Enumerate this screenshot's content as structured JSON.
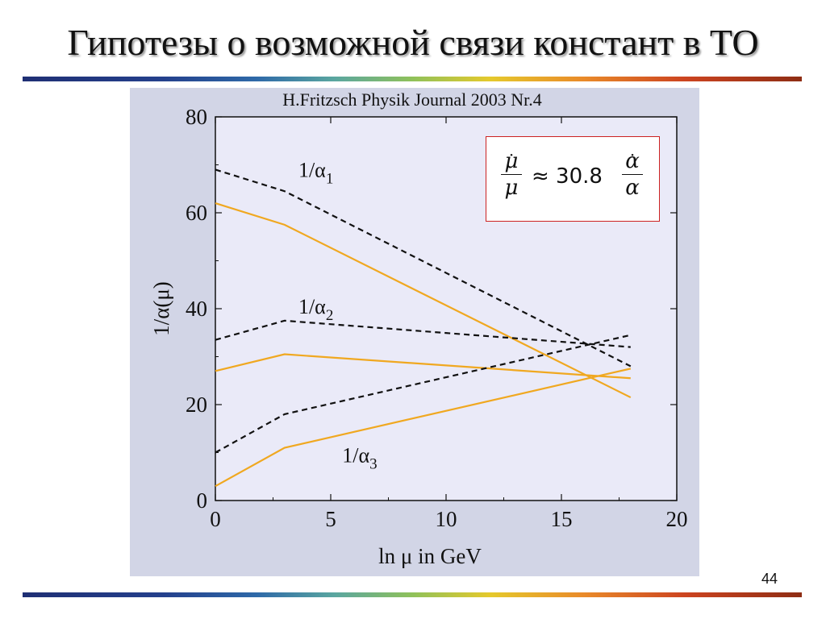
{
  "slide": {
    "title": "Гипотезы о возможной связи констант в ТО",
    "page_number": "44",
    "source": "H.Fritzsch Physik Journal 2003 Nr.4"
  },
  "formula": {
    "lhs_num": "μ",
    "lhs_den": "μ",
    "relation": "≈ 30.8",
    "rhs_num": "α",
    "rhs_den": "α"
  },
  "colors": {
    "solid_series": "#f0a820",
    "dashed_series": "#111111",
    "plot_background": "#eaeaf8",
    "figure_background": "#d2d5e6",
    "formula_border": "#cc2222"
  },
  "chart_data": {
    "type": "line",
    "xlabel": "ln μ in GeV",
    "ylabel": "1/α(μ)",
    "xlim": [
      0,
      20
    ],
    "ylim": [
      0,
      80
    ],
    "xticks": [
      "0",
      "5",
      "10",
      "15",
      "20"
    ],
    "yticks": [
      "0",
      "20",
      "40",
      "60",
      "80"
    ],
    "grid": false,
    "series_labels": [
      {
        "base": "1/α",
        "sub": "1"
      },
      {
        "base": "1/α",
        "sub": "2"
      },
      {
        "base": "1/α",
        "sub": "3"
      }
    ],
    "series": [
      {
        "group": "1/α1",
        "style": "dashed",
        "x": [
          0,
          3,
          18
        ],
        "y": [
          69,
          64.5,
          28
        ]
      },
      {
        "group": "1/α1",
        "style": "solid",
        "x": [
          0,
          3,
          18
        ],
        "y": [
          62,
          57.5,
          21.5
        ]
      },
      {
        "group": "1/α2",
        "style": "dashed",
        "x": [
          0,
          3,
          18
        ],
        "y": [
          33.5,
          37.5,
          32
        ]
      },
      {
        "group": "1/α2",
        "style": "solid",
        "x": [
          0,
          3,
          18
        ],
        "y": [
          27,
          30.5,
          25.5
        ]
      },
      {
        "group": "1/α3",
        "style": "dashed",
        "x": [
          0,
          3,
          18
        ],
        "y": [
          10,
          18,
          34.5
        ]
      },
      {
        "group": "1/α3",
        "style": "solid",
        "x": [
          0,
          3,
          18
        ],
        "y": [
          3,
          11,
          27.5
        ]
      }
    ]
  }
}
